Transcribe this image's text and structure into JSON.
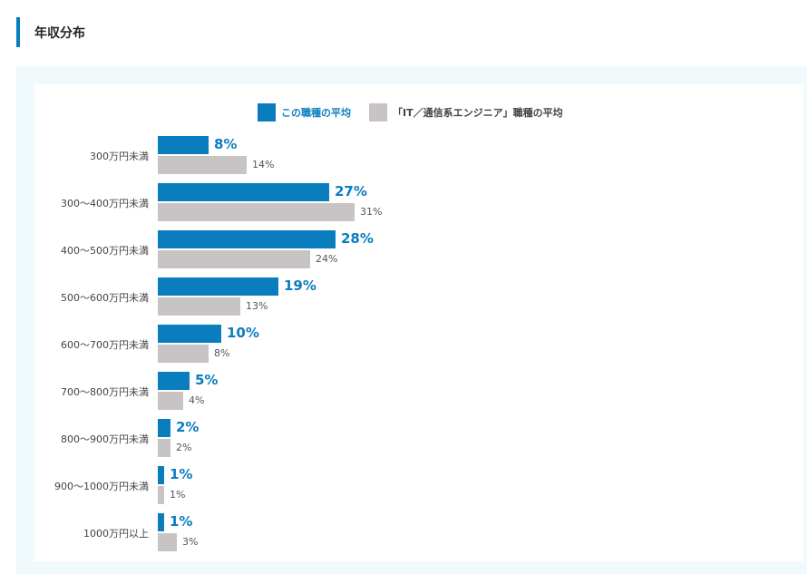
{
  "heading": "年収分布",
  "colors": {
    "main": "#0a7dbf",
    "ref": "#c8c4c4",
    "accent": "#0a7dbf",
    "panel_bg": "#f0f9fc"
  },
  "legend": {
    "main": "この職種の平均",
    "ref": "「IT／通信系エンジニア」職種の平均"
  },
  "chart_data": {
    "type": "bar",
    "orientation": "horizontal",
    "title": "年収分布",
    "categories": [
      "300万円未満",
      "300〜400万円未満",
      "400〜500万円未満",
      "500〜600万円未満",
      "600〜700万円未満",
      "700〜800万円未満",
      "800〜900万円未満",
      "900〜1000万円未満",
      "1000万円以上"
    ],
    "series": [
      {
        "name": "この職種の平均",
        "values": [
          8,
          27,
          28,
          19,
          10,
          5,
          2,
          1,
          1
        ],
        "labels": [
          "8%",
          "27%",
          "28%",
          "19%",
          "10%",
          "5%",
          "2%",
          "1%",
          "1%"
        ]
      },
      {
        "name": "「IT／通信系エンジニア」職種の平均",
        "values": [
          14,
          31,
          24,
          13,
          8,
          4,
          2,
          1,
          3
        ],
        "labels": [
          "14%",
          "31%",
          "24%",
          "13%",
          "8%",
          "4%",
          "2%",
          "1%",
          "3%"
        ]
      }
    ],
    "unit": "%",
    "grid": false,
    "legend_position": "top"
  }
}
